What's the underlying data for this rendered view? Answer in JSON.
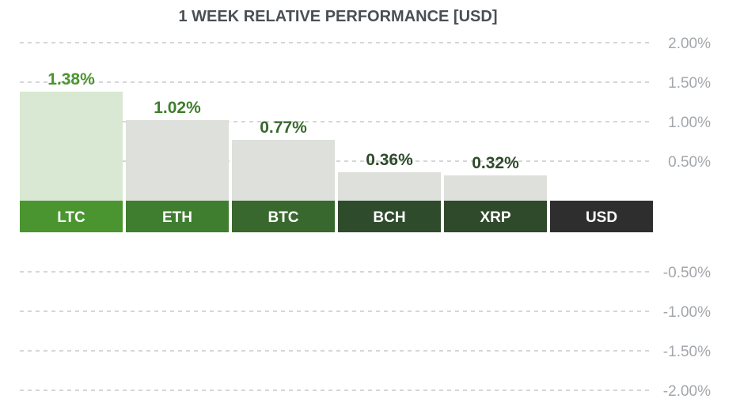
{
  "chart_data": {
    "type": "bar",
    "title": "1 WEEK RELATIVE PERFORMANCE  [USD]",
    "categories": [
      "LTC",
      "ETH",
      "BTC",
      "BCH",
      "XRP",
      "USD"
    ],
    "values": [
      1.38,
      1.02,
      0.77,
      0.36,
      0.32,
      0
    ],
    "value_labels": [
      "1.38%",
      "1.02%",
      "0.77%",
      "0.36%",
      "0.32%",
      ""
    ],
    "ylim": [
      -2.0,
      2.0
    ],
    "ticks": [
      {
        "value": 2.0,
        "label": "2.00%"
      },
      {
        "value": 1.5,
        "label": "1.50%"
      },
      {
        "value": 1.0,
        "label": "1.00%"
      },
      {
        "value": 0.5,
        "label": "0.50%"
      },
      {
        "value": -0.5,
        "label": "-0.50%"
      },
      {
        "value": -1.0,
        "label": "-1.00%"
      },
      {
        "value": -1.5,
        "label": "-1.50%"
      },
      {
        "value": -2.0,
        "label": "-2.00%"
      }
    ],
    "grid": true,
    "category_colors": [
      "#4a9530",
      "#3f7d2f",
      "#38682d",
      "#2e4b2b",
      "#2f4a2b",
      "#2e2e2e"
    ],
    "value_label_colors": [
      "#4a9530",
      "#3f7d2f",
      "#38682d",
      "#2e4b2b",
      "#2f4a2b",
      "#2e2e2e"
    ],
    "bar_colors": [
      "#d8e8d2",
      "#dde0db",
      "#dde0db",
      "#dde0db",
      "#dde0db",
      "#dde0db"
    ],
    "grid_color": "#c9c9c9"
  }
}
